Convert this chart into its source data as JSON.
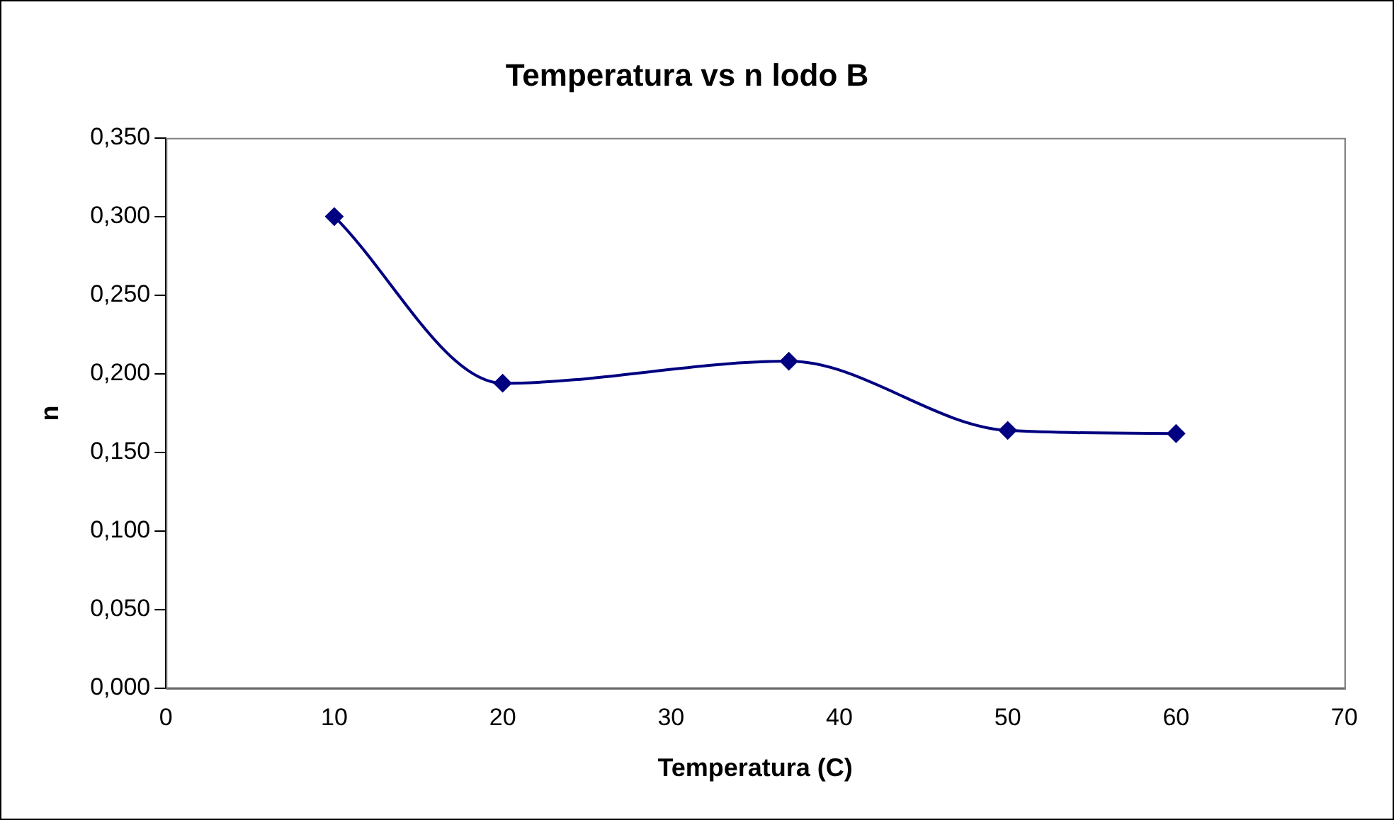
{
  "chart_data": {
    "type": "line",
    "title": "Temperatura vs n lodo B",
    "xlabel": "Temperatura (C)",
    "ylabel": "n",
    "x": [
      10,
      20,
      37,
      50,
      60
    ],
    "series": [
      {
        "color": "#000080",
        "values": [
          0.3,
          0.194,
          0.208,
          0.164,
          0.162
        ]
      }
    ],
    "xlim": [
      0,
      70
    ],
    "xticks": [
      0,
      10,
      20,
      30,
      40,
      50,
      60,
      70
    ],
    "ylim": [
      0,
      0.35
    ],
    "yticks": [
      {
        "value": 0,
        "label": "0,000"
      },
      {
        "value": 0.05,
        "label": "0,050"
      },
      {
        "value": 0.1,
        "label": "0,100"
      },
      {
        "value": 0.15,
        "label": "0,150"
      },
      {
        "value": 0.2,
        "label": "0,200"
      },
      {
        "value": 0.25,
        "label": "0,250"
      },
      {
        "value": 0.3,
        "label": "0,300"
      },
      {
        "value": 0.35,
        "label": "0,350"
      }
    ],
    "grid": false,
    "legend": false,
    "marker": "diamond",
    "line_style": "solid"
  }
}
